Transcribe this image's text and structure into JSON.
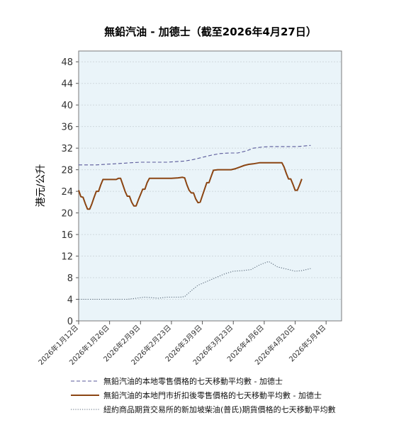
{
  "chart_data": {
    "type": "line",
    "title": "無鉛汽油 - 加德士（截至2026年4月27日）",
    "xlabel": "",
    "ylabel": "港元/公升",
    "ylim": [
      0,
      50
    ],
    "yticks": [
      0,
      4,
      8,
      12,
      16,
      20,
      24,
      28,
      32,
      36,
      40,
      44,
      48
    ],
    "x_range": [
      "2026-01-12",
      "2026-05-11"
    ],
    "xticks": [
      "2026年1月12日",
      "2026年1月26日",
      "2026年2月9日",
      "2026年2月23日",
      "2026年3月9日",
      "2026年3月23日",
      "2026年4月6日",
      "2026年4月20日",
      "2026年5月4日"
    ],
    "xtick_dates": [
      "2026-01-12",
      "2026-01-26",
      "2026-02-09",
      "2026-02-23",
      "2026-03-09",
      "2026-03-23",
      "2026-04-06",
      "2026-04-20",
      "2026-05-04"
    ],
    "grid": true,
    "legend_position": "bottom",
    "series": [
      {
        "name": "無鉛汽油的本地零售價格的七天移動平均數 - 加德士",
        "color": "#5a5a9a",
        "style": "dashed",
        "points": [
          [
            "2026-01-12",
            28.9
          ],
          [
            "2026-01-16",
            28.9
          ],
          [
            "2026-01-20",
            28.9
          ],
          [
            "2026-01-24",
            29.0
          ],
          [
            "2026-01-28",
            29.1
          ],
          [
            "2026-02-01",
            29.2
          ],
          [
            "2026-02-05",
            29.3
          ],
          [
            "2026-02-09",
            29.4
          ],
          [
            "2026-02-15",
            29.4
          ],
          [
            "2026-02-21",
            29.4
          ],
          [
            "2026-02-25",
            29.5
          ],
          [
            "2026-03-01",
            29.6
          ],
          [
            "2026-03-05",
            29.9
          ],
          [
            "2026-03-09",
            30.3
          ],
          [
            "2026-03-13",
            30.7
          ],
          [
            "2026-03-17",
            31.0
          ],
          [
            "2026-03-21",
            31.1
          ],
          [
            "2026-03-25",
            31.1
          ],
          [
            "2026-03-29",
            31.5
          ],
          [
            "2026-04-01",
            32.0
          ],
          [
            "2026-04-05",
            32.2
          ],
          [
            "2026-04-09",
            32.3
          ],
          [
            "2026-04-15",
            32.3
          ],
          [
            "2026-04-21",
            32.3
          ],
          [
            "2026-04-27",
            32.5
          ]
        ]
      },
      {
        "name": "無鉛汽油的本地門市折扣後零售價格的七天移動平均數 - 加德士",
        "color": "#8b4513",
        "style": "solid",
        "points": [
          [
            "2026-01-12",
            24.2
          ],
          [
            "2026-01-13",
            23.0
          ],
          [
            "2026-01-14",
            22.9
          ],
          [
            "2026-01-15",
            21.7
          ],
          [
            "2026-01-16",
            20.7
          ],
          [
            "2026-01-17",
            20.7
          ],
          [
            "2026-01-18",
            21.7
          ],
          [
            "2026-01-19",
            22.9
          ],
          [
            "2026-01-20",
            24.0
          ],
          [
            "2026-01-21",
            24.0
          ],
          [
            "2026-01-22",
            25.2
          ],
          [
            "2026-01-23",
            26.2
          ],
          [
            "2026-01-27",
            26.2
          ],
          [
            "2026-01-29",
            26.2
          ],
          [
            "2026-01-30",
            26.4
          ],
          [
            "2026-01-31",
            26.4
          ],
          [
            "2026-02-01",
            25.2
          ],
          [
            "2026-02-02",
            24.0
          ],
          [
            "2026-02-03",
            23.1
          ],
          [
            "2026-02-04",
            23.1
          ],
          [
            "2026-02-05",
            22.0
          ],
          [
            "2026-02-06",
            21.3
          ],
          [
            "2026-02-07",
            21.3
          ],
          [
            "2026-02-08",
            22.4
          ],
          [
            "2026-02-09",
            23.4
          ],
          [
            "2026-02-10",
            24.4
          ],
          [
            "2026-02-11",
            24.4
          ],
          [
            "2026-02-12",
            25.6
          ],
          [
            "2026-02-13",
            26.4
          ],
          [
            "2026-02-20",
            26.4
          ],
          [
            "2026-02-23",
            26.4
          ],
          [
            "2026-02-26",
            26.5
          ],
          [
            "2026-02-28",
            26.6
          ],
          [
            "2026-03-01",
            26.5
          ],
          [
            "2026-03-02",
            25.2
          ],
          [
            "2026-03-03",
            24.2
          ],
          [
            "2026-03-04",
            23.7
          ],
          [
            "2026-03-05",
            23.7
          ],
          [
            "2026-03-06",
            22.6
          ],
          [
            "2026-03-07",
            21.9
          ],
          [
            "2026-03-08",
            22.0
          ],
          [
            "2026-03-09",
            23.2
          ],
          [
            "2026-03-10",
            24.4
          ],
          [
            "2026-03-11",
            25.6
          ],
          [
            "2026-03-12",
            25.6
          ],
          [
            "2026-03-13",
            26.8
          ],
          [
            "2026-03-14",
            27.9
          ],
          [
            "2026-03-16",
            28.0
          ],
          [
            "2026-03-18",
            28.0
          ],
          [
            "2026-03-20",
            28.0
          ],
          [
            "2026-03-22",
            28.0
          ],
          [
            "2026-03-24",
            28.2
          ],
          [
            "2026-03-26",
            28.5
          ],
          [
            "2026-03-28",
            28.8
          ],
          [
            "2026-03-30",
            29.0
          ],
          [
            "2026-04-01",
            29.1
          ],
          [
            "2026-04-04",
            29.3
          ],
          [
            "2026-04-06",
            29.3
          ],
          [
            "2026-04-10",
            29.3
          ],
          [
            "2026-04-14",
            29.3
          ],
          [
            "2026-04-15",
            28.5
          ],
          [
            "2026-04-16",
            27.3
          ],
          [
            "2026-04-17",
            26.3
          ],
          [
            "2026-04-18",
            26.3
          ],
          [
            "2026-04-19",
            25.3
          ],
          [
            "2026-04-20",
            24.2
          ],
          [
            "2026-04-21",
            24.2
          ],
          [
            "2026-04-22",
            25.2
          ],
          [
            "2026-04-23",
            26.3
          ]
        ]
      },
      {
        "name": "紐約商品期貨交易所的新加坡柴油(普氏)期貨價格的七天移動平均數",
        "color": "#5a6a7a",
        "style": "dotted",
        "points": [
          [
            "2026-01-12",
            4.0
          ],
          [
            "2026-01-20",
            4.0
          ],
          [
            "2026-01-28",
            4.0
          ],
          [
            "2026-02-03",
            4.0
          ],
          [
            "2026-02-07",
            4.2
          ],
          [
            "2026-02-11",
            4.4
          ],
          [
            "2026-02-17",
            4.2
          ],
          [
            "2026-02-21",
            4.4
          ],
          [
            "2026-02-27",
            4.4
          ],
          [
            "2026-03-01",
            4.5
          ],
          [
            "2026-03-04",
            5.6
          ],
          [
            "2026-03-07",
            6.6
          ],
          [
            "2026-03-11",
            7.3
          ],
          [
            "2026-03-15",
            8.0
          ],
          [
            "2026-03-19",
            8.7
          ],
          [
            "2026-03-23",
            9.2
          ],
          [
            "2026-03-27",
            9.3
          ],
          [
            "2026-03-31",
            9.5
          ],
          [
            "2026-04-04",
            10.4
          ],
          [
            "2026-04-08",
            11.0
          ],
          [
            "2026-04-12",
            10.0
          ],
          [
            "2026-04-16",
            9.6
          ],
          [
            "2026-04-20",
            9.2
          ],
          [
            "2026-04-23",
            9.3
          ],
          [
            "2026-04-27",
            9.7
          ]
        ]
      }
    ]
  }
}
